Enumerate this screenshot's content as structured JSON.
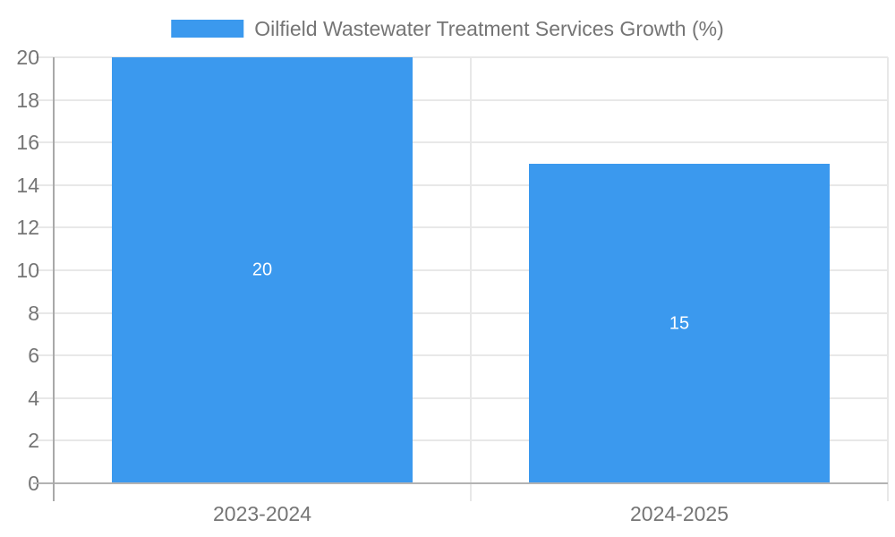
{
  "colors": {
    "background": "#ffffff",
    "bar": "#3b99ee",
    "bar_value_label": "#ffffff",
    "legend_text": "#757575",
    "axis_text": "#757575",
    "gridline": "#e8e8e8",
    "axis_line": "#a9a9a9",
    "baseline": "#b3b3b3"
  },
  "legend": {
    "swatch_icon": "blue-rect-swatch",
    "label": "Oilfield Wastewater Treatment Services Growth (%)"
  },
  "chart_data": {
    "type": "bar",
    "title": "Oilfield Wastewater Treatment Services Growth (%)",
    "categories": [
      "2023-2024",
      "2024-2025"
    ],
    "values": [
      20,
      15
    ],
    "bar_value_labels": [
      "20",
      "15"
    ],
    "series": [
      {
        "name": "Oilfield Wastewater Treatment Services Growth (%)",
        "values": [
          20,
          15
        ]
      }
    ],
    "xlabel": "",
    "ylabel": "",
    "ylim": [
      0,
      20
    ],
    "yticks": [
      0,
      2,
      4,
      6,
      8,
      10,
      12,
      14,
      16,
      18,
      20
    ],
    "grid": true,
    "legend_position": "top-center",
    "bar_label_position": "inside-center"
  }
}
